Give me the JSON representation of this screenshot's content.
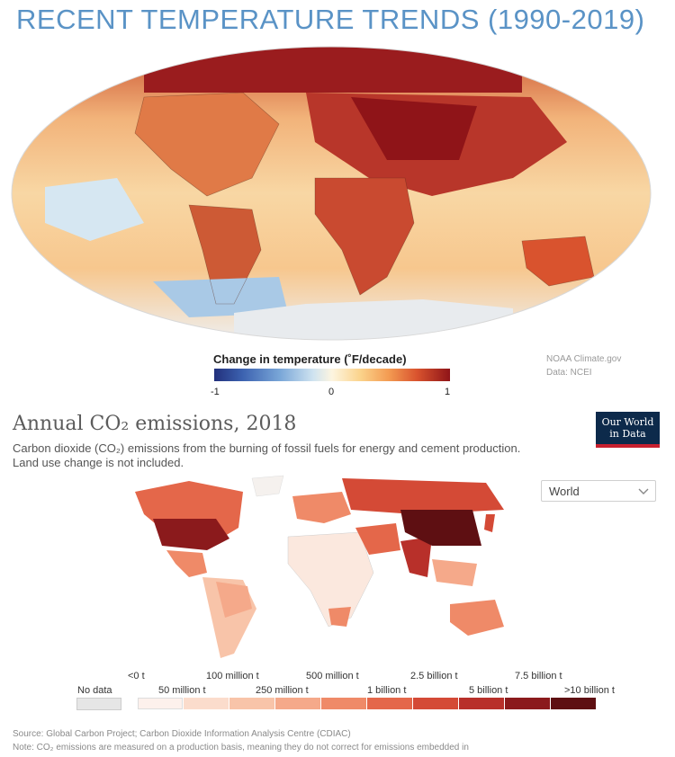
{
  "top_section": {
    "title": "RECENT TEMPERATURE TRENDS (1990-2019)",
    "legend_title": "Change in temperature (˚F/decade)",
    "ticks": [
      "-1",
      "0",
      "1"
    ],
    "credit_line1": "NOAA Climate.gov",
    "credit_line2": "Data: NCEI",
    "colors": {
      "cold": "#22307c",
      "neutral": "#fdf5e0",
      "warm": "#d9532e",
      "hot": "#8f1418"
    }
  },
  "co2_section": {
    "title": "Annual CO₂ emissions, 2018",
    "subtitle": "Carbon dioxide (CO₂) emissions from the burning of fossil fuels for energy and cement production. Land use change is not included.",
    "logo_line1": "Our World",
    "logo_line2": "in Data",
    "region_select": "World",
    "no_data_label": "No data",
    "legend_upper": [
      "<0 t",
      "100 million t",
      "500 million t",
      "2.5 billion t",
      "7.5 billion t"
    ],
    "legend_lower": [
      "50 million t",
      "250 million t",
      "1 billion t",
      "5 billion t",
      ">10 billion t"
    ],
    "legend_colors": [
      "#fdf1ec",
      "#fbdccc",
      "#f8c4a9",
      "#f5a98a",
      "#ef8a68",
      "#e4674a",
      "#d44a36",
      "#b8302a",
      "#8b1a1c",
      "#5e0f12"
    ],
    "source": "Source: Global Carbon Project; Carbon Dioxide Information Analysis Centre (CDIAC)",
    "note": "Note: CO₂ emissions are measured on a production basis, meaning they do not correct for emissions embedded in"
  }
}
